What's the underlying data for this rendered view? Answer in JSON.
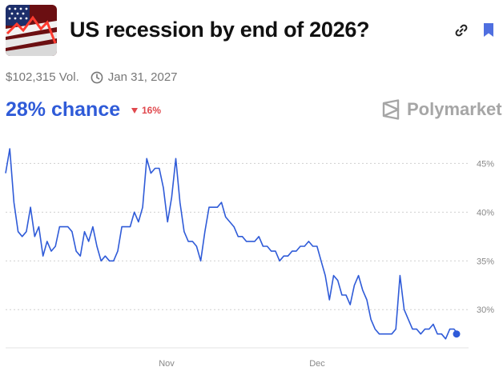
{
  "header": {
    "title": "US recession by end of 2026?",
    "thumbnail_icon": "us-flag-recession-thumbnail",
    "link_icon": "link-icon",
    "bookmark_icon": "bookmark-icon"
  },
  "meta": {
    "volume": "$102,315 Vol.",
    "end_date": "Jan 31, 2027"
  },
  "odds": {
    "chance": "28% chance",
    "change": "16%",
    "change_direction": "down",
    "change_color": "#e0484d",
    "accent": "#2f5bd8"
  },
  "brand": {
    "name": "Polymarket",
    "icon": "polymarket-logo-icon"
  },
  "chart_data": {
    "type": "line",
    "x_ticks": [
      "Nov",
      "Dec"
    ],
    "y_ticks": [
      "45%",
      "40%",
      "35%",
      "30%"
    ],
    "ylim": [
      26,
      47
    ],
    "grid": true,
    "series": [
      {
        "color": "#2f5bd8",
        "values": [
          44,
          46.5,
          41,
          38,
          37.5,
          38,
          40.5,
          37.5,
          38.5,
          35.5,
          37,
          36,
          36.5,
          38.5,
          38.5,
          38.5,
          38,
          36,
          35.5,
          38,
          37,
          38.5,
          36.5,
          35,
          35.5,
          35,
          35,
          36,
          38.5,
          38.5,
          38.5,
          40,
          39,
          40.5,
          45.5,
          44,
          44.5,
          44.5,
          42.5,
          39,
          41.5,
          45.5,
          41,
          38,
          37,
          37,
          36.5,
          35,
          38,
          40.5,
          40.5,
          40.5,
          41,
          39.5,
          39,
          38.5,
          37.5,
          37.5,
          37,
          37,
          37,
          37.5,
          36.5,
          36.5,
          36,
          36,
          35,
          35.5,
          35.5,
          36,
          36,
          36.5,
          36.5,
          37,
          36.5,
          36.5,
          35,
          33.5,
          31,
          33.5,
          33,
          31.5,
          31.5,
          30.5,
          32.5,
          33.5,
          32,
          31,
          29,
          28,
          27.5,
          27.5,
          27.5,
          27.5,
          28,
          33.5,
          30,
          29,
          28,
          28,
          27.5,
          28,
          28,
          28.5,
          27.5,
          27.5,
          27,
          28,
          28,
          27.5
        ]
      }
    ]
  }
}
